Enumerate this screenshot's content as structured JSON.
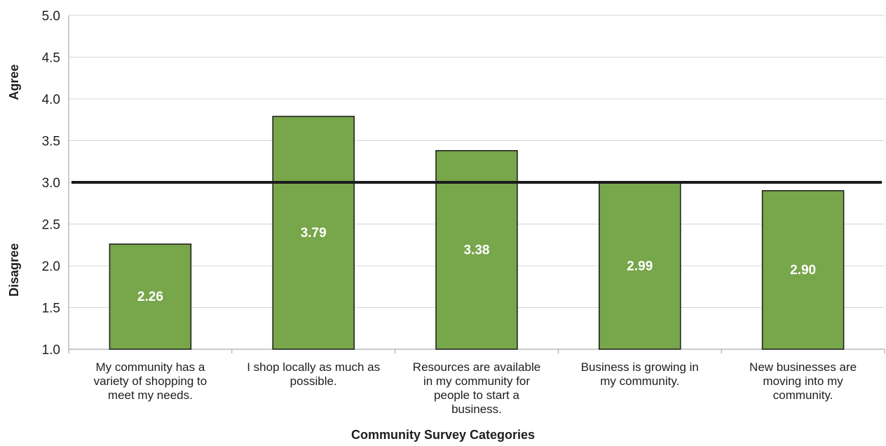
{
  "chart_data": {
    "type": "bar",
    "categories": [
      "My community has a variety of shopping to meet my needs.",
      "I shop locally as much as possible.",
      "Resources are available in my community for people to start a business.",
      "Business is growing in my community.",
      "New businesses are moving into my community."
    ],
    "category_lines": [
      [
        "My community has a",
        "variety of shopping to",
        "meet my needs."
      ],
      [
        "I shop locally as much as",
        "possible."
      ],
      [
        "Resources are available",
        "in my community for",
        "people to start a",
        "business."
      ],
      [
        "Business is growing in",
        "my community."
      ],
      [
        "New businesses are",
        "moving into my",
        "community."
      ]
    ],
    "values": [
      2.26,
      3.79,
      3.38,
      2.99,
      2.9
    ],
    "data_labels": [
      "2.26",
      "3.79",
      "3.38",
      "2.99",
      "2.90"
    ],
    "reference_line": 3.0,
    "ylim": [
      1.0,
      5.0
    ],
    "yticks": [
      "1.0",
      "1.5",
      "2.0",
      "2.5",
      "3.0",
      "3.5",
      "4.0",
      "4.5",
      "5.0"
    ],
    "xlabel": "Community Survey Categories",
    "ylabel_upper": "Agree",
    "ylabel_lower": "Disagree",
    "grid": true,
    "colors": {
      "bar": "#78a64a",
      "bar_edge": "#1a1a1a",
      "reference_line": "#1a1a1a",
      "grid": "#d4d4d4"
    }
  }
}
